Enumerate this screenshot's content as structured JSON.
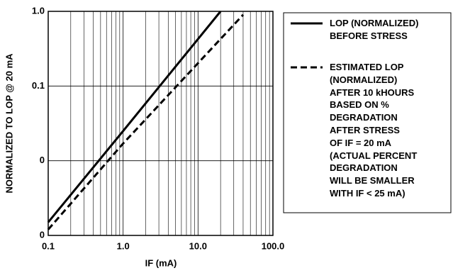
{
  "chart_data": {
    "type": "line",
    "x_label": "IF (mA)",
    "y_label": "NORMALIZED TO LOP @ 20 mA",
    "xscale": "log",
    "yscale": "log",
    "xlim": [
      0.1,
      100
    ],
    "ylim": [
      0.001,
      1
    ],
    "xticks": [
      0.1,
      {
        "value": 1,
        "label": "1.0"
      },
      {
        "value": 10,
        "label": "10.0"
      },
      {
        "value": 100,
        "label": "100.0"
      }
    ],
    "yticks": [
      {
        "value": 0.001,
        "label": "0"
      },
      {
        "value": 0.01,
        "label": "0"
      },
      0.1,
      {
        "value": 1,
        "label": "1.0"
      }
    ],
    "grid": true,
    "legend": "right",
    "series": [
      {
        "name": "LOP (NORMALIZED)\nBEFORE STRESS",
        "color": "#000000",
        "dash": "solid",
        "x": [
          0.1,
          1,
          20
        ],
        "values": [
          0.0015,
          0.025,
          1
        ]
      },
      {
        "name": "ESTIMATED LOP\n(NORMALIZED)\nAFTER 10 kHOURS\nBASED ON %\nDEGRADATION\nAFTER STRESS\nOF IF = 20 mA\n(ACTUAL PERCENT\nDEGRADATION\nWILL BE SMALLER\nWITH IF < 25 mA)",
        "color": "#000000",
        "dash": "dashed",
        "x": [
          0.1,
          1,
          40
        ],
        "values": [
          0.0012,
          0.017,
          0.9
        ]
      }
    ]
  }
}
